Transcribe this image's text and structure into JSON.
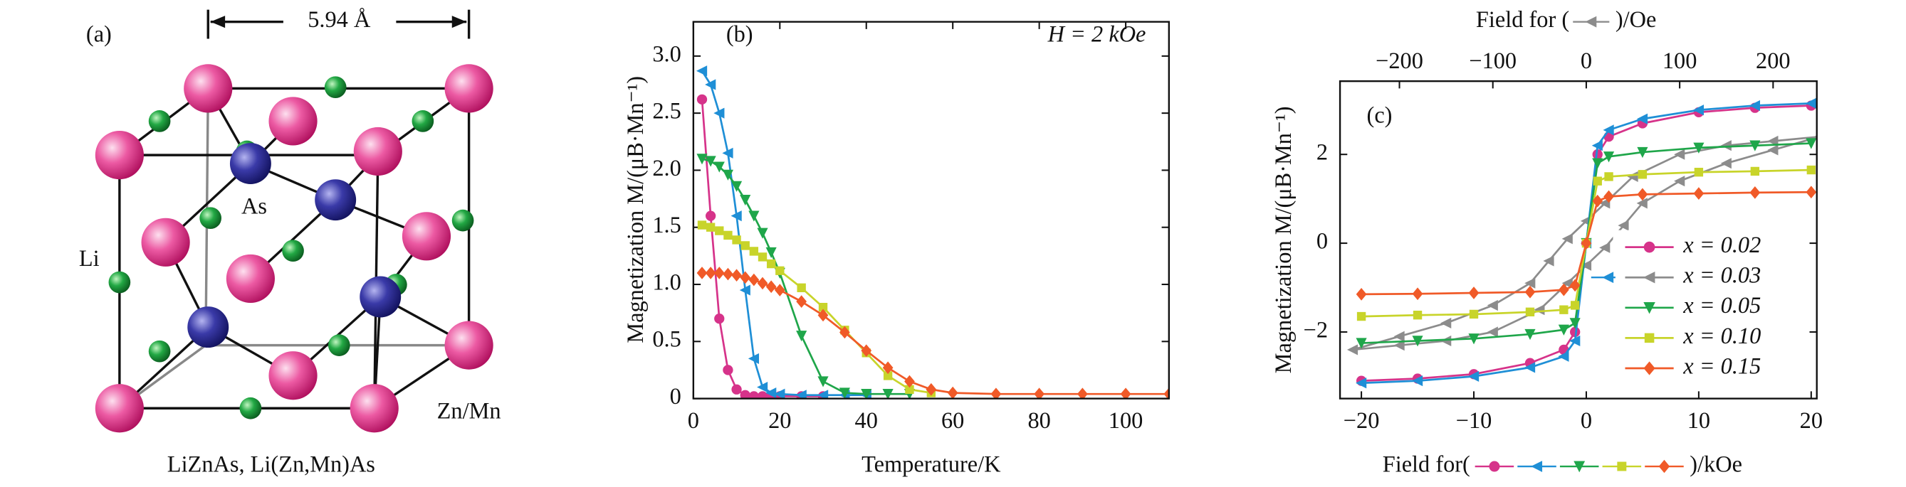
{
  "structure": {
    "label": "(a)",
    "lattice_constant": "5.94 Å",
    "atoms": [
      "As",
      "Li",
      "Zn/Mn"
    ],
    "caption": "LiZnAs, Li(Zn,Mn)As"
  },
  "chart_data": [
    {
      "type": "line",
      "label": "(b)",
      "annotation": "H = 2 kOe",
      "xlabel": "Temperature/K",
      "ylabel": "Magnetization M/(μB·Mn⁻¹)",
      "xlim": [
        0,
        110
      ],
      "ylim": [
        0,
        3.3
      ],
      "xticks": [
        0,
        20,
        40,
        60,
        80,
        100
      ],
      "yticks": [
        0,
        0.5,
        {
          "value": 1,
          "label": "1.0"
        },
        1.5,
        {
          "value": 2,
          "label": "2.0"
        },
        2.5,
        {
          "value": 3,
          "label": "3.0"
        }
      ],
      "x": [
        2,
        4,
        6,
        8,
        10,
        12,
        14,
        16,
        18,
        20,
        25,
        30,
        35,
        40,
        45,
        50,
        55,
        60,
        70,
        80,
        90,
        100,
        110
      ],
      "series": [
        {
          "color": "#d6338a",
          "marker": "circle",
          "values": [
            2.62,
            1.6,
            0.7,
            0.25,
            0.08,
            0.03,
            0.02,
            0.02,
            0.02,
            0.02,
            0.02,
            0.02,
            null,
            null,
            null,
            null,
            null,
            null,
            null,
            null,
            null,
            null,
            null
          ]
        },
        {
          "color": "#1f8fd6",
          "marker": "triangle-left",
          "values": [
            2.87,
            2.75,
            2.5,
            2.15,
            1.6,
            0.95,
            0.35,
            0.1,
            0.05,
            0.04,
            0.03,
            0.03,
            0.03,
            0.03,
            null,
            null,
            null,
            null,
            null,
            null,
            null,
            null,
            null
          ]
        },
        {
          "color": "#1fa64a",
          "marker": "triangle-down",
          "values": [
            2.1,
            2.08,
            2.03,
            1.96,
            1.86,
            1.74,
            1.6,
            1.45,
            1.28,
            1.1,
            0.55,
            0.15,
            0.05,
            0.04,
            0.04,
            0.04,
            null,
            null,
            null,
            null,
            null,
            null,
            null
          ]
        },
        {
          "color": "#c8d42a",
          "marker": "square",
          "values": [
            1.52,
            1.5,
            1.47,
            1.43,
            1.39,
            1.34,
            1.29,
            1.24,
            1.18,
            1.12,
            0.97,
            0.8,
            0.6,
            0.4,
            0.2,
            0.08,
            0.05,
            null,
            null,
            null,
            null,
            null,
            null
          ]
        },
        {
          "color": "#f05a28",
          "marker": "diamond",
          "values": [
            1.1,
            1.1,
            1.1,
            1.09,
            1.08,
            1.06,
            1.04,
            1.01,
            0.98,
            0.95,
            0.85,
            0.73,
            0.58,
            0.42,
            0.27,
            0.15,
            0.08,
            0.05,
            0.04,
            0.04,
            0.04,
            0.04,
            0.04
          ]
        }
      ]
    },
    {
      "type": "line",
      "label": "(c)",
      "xlabel": [
        "Field for(",
        ")/kOe"
      ],
      "x2label": [
        "Field for (",
        ")/Oe"
      ],
      "ylabel": "Magnetization M/(μB·Mn⁻¹)",
      "xlim": [
        -21.9,
        20.5
      ],
      "x2lim": [
        -263.6,
        246.8
      ],
      "ylim": [
        -3.5,
        3.65
      ],
      "xticks": [
        {
          "value": -20,
          "label": "−20"
        },
        {
          "value": -10,
          "label": "−10"
        },
        0,
        10,
        20
      ],
      "x2ticks": [
        {
          "value": -200,
          "label": "−200"
        },
        {
          "value": -100,
          "label": "−100"
        },
        0,
        100,
        200
      ],
      "yticks": [
        {
          "value": -2,
          "label": "−2"
        },
        0,
        2
      ],
      "legend": "lower right",
      "x": [
        -20,
        -15,
        -10,
        -5,
        -2,
        -1,
        0,
        1,
        2,
        5,
        10,
        15,
        20
      ],
      "series": [
        {
          "name": "x = 0.02",
          "color": "#d6338a",
          "marker": "circle",
          "values": [
            -3.1,
            -3.05,
            -2.95,
            -2.7,
            -2.4,
            -2.0,
            0,
            2.0,
            2.4,
            2.7,
            2.95,
            3.05,
            3.1
          ]
        },
        {
          "name": "x = 0.03",
          "color": "#8c8c8c",
          "marker": "triangle-left",
          "axis": "x2",
          "x": [
            250,
            200,
            150,
            100,
            50,
            20,
            0,
            -20,
            -40,
            -60,
            -100,
            -150,
            -200,
            -250,
            -200,
            -150,
            -100,
            -50,
            -20,
            0,
            20,
            40,
            60,
            100,
            150,
            200,
            250
          ],
          "values": [
            2.4,
            2.3,
            2.2,
            2.0,
            1.5,
            0.9,
            0.5,
            0.1,
            -0.4,
            -0.9,
            -1.4,
            -1.8,
            -2.1,
            -2.4,
            -2.3,
            -2.2,
            -2.0,
            -1.5,
            -0.9,
            -0.5,
            -0.1,
            0.4,
            0.9,
            1.4,
            1.8,
            2.1,
            2.4
          ]
        },
        {
          "color": "#1f8fd6",
          "marker": "triangle-left",
          "values": [
            -3.15,
            -3.1,
            -3.0,
            -2.8,
            -2.55,
            -2.2,
            0,
            2.2,
            2.55,
            2.8,
            3.0,
            3.1,
            3.15
          ]
        },
        {
          "name": "x = 0.05",
          "color": "#1fa64a",
          "marker": "triangle-down",
          "values": [
            -2.25,
            -2.2,
            -2.15,
            -2.05,
            -1.95,
            -1.8,
            0,
            1.8,
            1.95,
            2.05,
            2.15,
            2.2,
            2.25
          ]
        },
        {
          "name": "x = 0.10",
          "color": "#c8d42a",
          "marker": "square",
          "values": [
            -1.65,
            -1.62,
            -1.6,
            -1.55,
            -1.5,
            -1.4,
            0,
            1.4,
            1.5,
            1.55,
            1.6,
            1.62,
            1.65
          ]
        },
        {
          "name": "x = 0.15",
          "color": "#f05a28",
          "marker": "diamond",
          "values": [
            -1.15,
            -1.14,
            -1.12,
            -1.1,
            -1.05,
            -0.95,
            0,
            0.95,
            1.05,
            1.1,
            1.12,
            1.14,
            1.15
          ]
        }
      ]
    }
  ]
}
